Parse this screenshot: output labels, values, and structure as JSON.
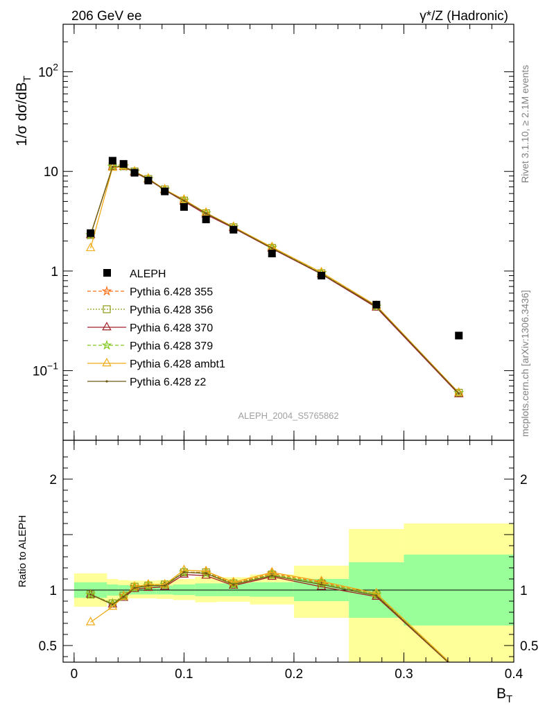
{
  "header": {
    "left": "206 GeV ee",
    "right_base": "γ*/Z (Hadronic)"
  },
  "side_labels": {
    "rivet": "Rivet 3.1.10, ≥ 2.1M events",
    "mcplots": "mcplots.cern.ch [arXiv:1306.3436]"
  },
  "analysis_label": "ALEPH_2004_S5765862",
  "chart_data": [
    {
      "type": "line",
      "panel": "main",
      "ylabel": "1/σ dσ/dB_T",
      "yscale": "log",
      "ylim": [
        0.02,
        300
      ],
      "xlim": [
        -0.01,
        0.4
      ],
      "yticks": [
        {
          "v": 0.1,
          "base": "10",
          "exp": "−1"
        },
        {
          "v": 1,
          "label": "1"
        },
        {
          "v": 10,
          "label": "10"
        },
        {
          "v": 100,
          "base": "10",
          "exp": "2"
        }
      ],
      "legend_position": "middle-left",
      "data": {
        "name": "ALEPH",
        "x": [
          0.015,
          0.035,
          0.045,
          0.055,
          0.0675,
          0.0825,
          0.1,
          0.12,
          0.145,
          0.18,
          0.225,
          0.275,
          0.35
        ],
        "y": [
          2.4,
          12.8,
          11.9,
          9.7,
          8.1,
          6.3,
          4.4,
          3.3,
          2.6,
          1.5,
          0.9,
          0.46,
          0.225
        ]
      },
      "series": [
        {
          "name": "Pythia 6.428 355",
          "color": "#ff6e14",
          "marker": "star",
          "dash": "5,3",
          "y": [
            2.3,
            11.2,
            11.3,
            10.0,
            8.4,
            6.6,
            5.1,
            3.8,
            2.75,
            1.72,
            0.96,
            0.44,
            0.06
          ]
        },
        {
          "name": "Pythia 6.428 356",
          "color": "#8c9a14",
          "marker": "square-open",
          "dash": "2,2",
          "y": [
            2.3,
            11.3,
            11.3,
            10.0,
            8.4,
            6.6,
            5.1,
            3.8,
            2.75,
            1.71,
            0.95,
            0.44,
            0.06
          ]
        },
        {
          "name": "Pythia 6.428 370",
          "color": "#a01e28",
          "marker": "triangle-open",
          "dash": "",
          "y": [
            2.3,
            11.1,
            11.1,
            9.8,
            8.3,
            6.5,
            5.0,
            3.7,
            2.7,
            1.68,
            0.93,
            0.43,
            0.058
          ]
        },
        {
          "name": "Pythia 6.428 379",
          "color": "#82c81e",
          "marker": "star",
          "dash": "5,3",
          "y": [
            2.3,
            11.2,
            11.2,
            9.9,
            8.4,
            6.6,
            5.1,
            3.8,
            2.74,
            1.71,
            0.95,
            0.44,
            0.06
          ]
        },
        {
          "name": "Pythia 6.428 ambt1",
          "color": "#f0aa14",
          "marker": "triangle-open",
          "dash": "",
          "y": [
            1.7,
            10.9,
            11.2,
            10.0,
            8.5,
            6.6,
            5.2,
            3.85,
            2.78,
            1.74,
            0.97,
            0.45,
            0.06
          ]
        },
        {
          "name": "Pythia 6.428 z2",
          "color": "#6e5a14",
          "marker": "dot",
          "dash": "",
          "y": [
            2.3,
            11.1,
            11.2,
            9.9,
            8.4,
            6.5,
            5.1,
            3.8,
            2.73,
            1.7,
            0.94,
            0.44,
            0.059
          ]
        }
      ]
    },
    {
      "type": "line",
      "panel": "ratio",
      "ylabel": "Ratio to ALEPH",
      "xlabel": "B_T",
      "ylim": [
        0.35,
        2.35
      ],
      "xlim": [
        -0.01,
        0.4
      ],
      "yticks": [
        0.5,
        1,
        2
      ],
      "xticks": [
        0,
        0.1,
        0.2,
        0.3,
        0.4
      ],
      "xtick_labels": [
        "0",
        "0.1",
        "0.2",
        "0.3",
        "0.4"
      ],
      "bands": [
        {
          "x0": 0.0,
          "x1": 0.03,
          "inner": [
            0.93,
            1.07
          ],
          "outer": [
            0.85,
            1.15
          ]
        },
        {
          "x0": 0.03,
          "x1": 0.04,
          "inner": [
            0.95,
            1.05
          ],
          "outer": [
            0.9,
            1.1
          ]
        },
        {
          "x0": 0.04,
          "x1": 0.05,
          "inner": [
            0.955,
            1.045
          ],
          "outer": [
            0.92,
            1.09
          ]
        },
        {
          "x0": 0.05,
          "x1": 0.06,
          "inner": [
            0.96,
            1.04
          ],
          "outer": [
            0.925,
            1.085
          ]
        },
        {
          "x0": 0.06,
          "x1": 0.075,
          "inner": [
            0.96,
            1.04
          ],
          "outer": [
            0.925,
            1.085
          ]
        },
        {
          "x0": 0.075,
          "x1": 0.09,
          "inner": [
            0.96,
            1.04
          ],
          "outer": [
            0.92,
            1.09
          ]
        },
        {
          "x0": 0.09,
          "x1": 0.11,
          "inner": [
            0.955,
            1.05
          ],
          "outer": [
            0.91,
            1.1
          ]
        },
        {
          "x0": 0.11,
          "x1": 0.13,
          "inner": [
            0.945,
            1.06
          ],
          "outer": [
            0.89,
            1.12
          ]
        },
        {
          "x0": 0.13,
          "x1": 0.16,
          "inner": [
            0.945,
            1.06
          ],
          "outer": [
            0.895,
            1.115
          ]
        },
        {
          "x0": 0.16,
          "x1": 0.2,
          "inner": [
            0.94,
            1.07
          ],
          "outer": [
            0.87,
            1.14
          ]
        },
        {
          "x0": 0.2,
          "x1": 0.25,
          "inner": [
            0.9,
            1.1
          ],
          "outer": [
            0.75,
            1.22
          ]
        },
        {
          "x0": 0.25,
          "x1": 0.3,
          "inner": [
            0.75,
            1.25
          ],
          "outer": [
            0.35,
            1.55
          ]
        },
        {
          "x0": 0.3,
          "x1": 0.4,
          "inner": [
            0.68,
            1.32
          ],
          "outer": [
            0.35,
            1.6
          ]
        }
      ],
      "series": [
        {
          "name": "Pythia 6.428 355",
          "color": "#ff6e14",
          "marker": "star",
          "dash": "5,3",
          "y": [
            0.96,
            0.88,
            0.95,
            1.03,
            1.04,
            1.05,
            1.16,
            1.16,
            1.06,
            1.15,
            1.07,
            0.96,
            0.27
          ]
        },
        {
          "name": "Pythia 6.428 356",
          "color": "#8c9a14",
          "marker": "square-open",
          "dash": "2,2",
          "y": [
            0.96,
            0.88,
            0.95,
            1.03,
            1.04,
            1.05,
            1.16,
            1.16,
            1.06,
            1.14,
            1.06,
            0.96,
            0.27
          ]
        },
        {
          "name": "Pythia 6.428 370",
          "color": "#a01e28",
          "marker": "triangle-open",
          "dash": "",
          "y": [
            0.96,
            0.87,
            0.93,
            1.01,
            1.02,
            1.03,
            1.14,
            1.13,
            1.04,
            1.12,
            1.03,
            0.94,
            0.26
          ]
        },
        {
          "name": "Pythia 6.428 379",
          "color": "#82c81e",
          "marker": "star",
          "dash": "5,3",
          "y": [
            0.96,
            0.88,
            0.94,
            1.02,
            1.04,
            1.05,
            1.16,
            1.15,
            1.05,
            1.14,
            1.06,
            0.96,
            0.27
          ]
        },
        {
          "name": "Pythia 6.428 ambt1",
          "color": "#f0aa14",
          "marker": "triangle-open",
          "dash": "",
          "y": [
            0.71,
            0.85,
            0.94,
            1.03,
            1.05,
            1.05,
            1.18,
            1.17,
            1.07,
            1.16,
            1.08,
            0.97,
            0.27
          ]
        },
        {
          "name": "Pythia 6.428 z2",
          "color": "#6e5a14",
          "marker": "dot",
          "dash": "",
          "y": [
            0.96,
            0.87,
            0.94,
            1.02,
            1.04,
            1.04,
            1.16,
            1.15,
            1.05,
            1.13,
            1.05,
            0.95,
            0.26
          ]
        }
      ]
    }
  ]
}
